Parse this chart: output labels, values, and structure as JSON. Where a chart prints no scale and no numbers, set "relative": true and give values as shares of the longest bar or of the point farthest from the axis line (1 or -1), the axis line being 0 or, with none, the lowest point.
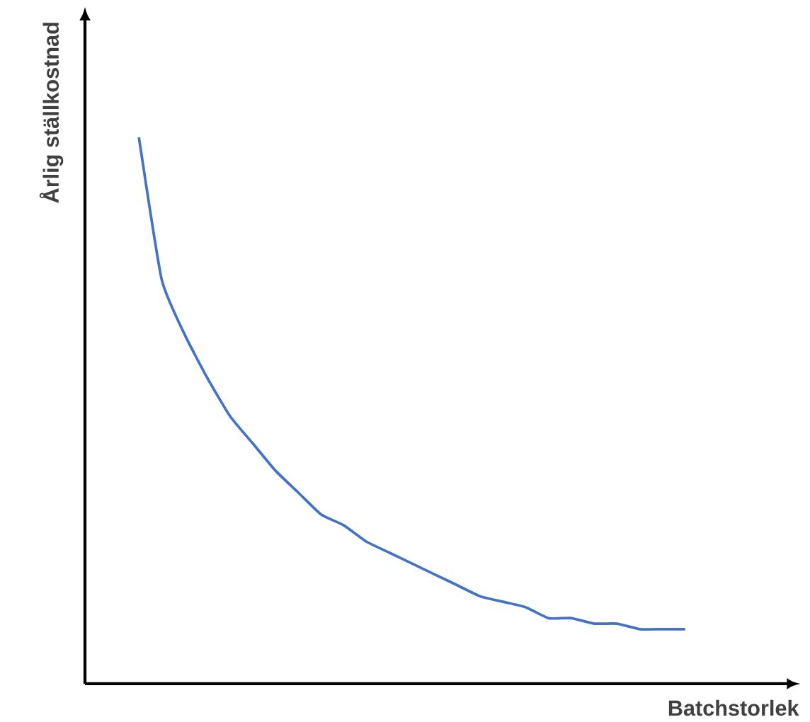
{
  "chart_data": {
    "type": "line",
    "xlabel": "Batchstorlek",
    "ylabel": "Årlig ställkostnad",
    "relative": true,
    "categories": [
      null,
      null,
      null,
      null,
      null,
      null,
      null,
      null,
      null,
      null,
      null,
      null,
      null,
      null,
      null,
      null,
      null,
      null,
      null,
      null,
      null,
      null,
      null,
      null,
      null
    ],
    "series": [
      {
        "color": "#4472c4",
        "values": [
          1,
          0.74,
          0.64,
          0.56,
          0.49,
          0.44,
          0.39,
          0.35,
          0.31,
          0.29,
          0.26,
          0.24,
          0.22,
          0.2,
          0.18,
          0.16,
          0.15,
          0.14,
          0.12,
          0.12,
          0.11,
          0.11,
          0.1,
          0.1,
          0.1
        ]
      }
    ]
  }
}
